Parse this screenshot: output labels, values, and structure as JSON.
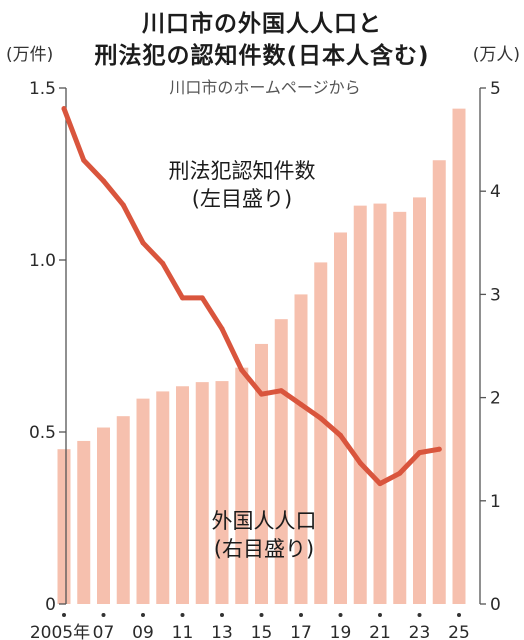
{
  "header": {
    "title_line1": "川口市の外国人人口と",
    "title_line2": "刑法犯の認知件数(日本人含む)",
    "unit_left": "(万件)",
    "unit_right": "(万人)",
    "source": "川口市のホームページから"
  },
  "chart_data": {
    "type": "bar+line",
    "title": "川口市の外国人人口と刑法犯の認知件数(日本人含む)",
    "source": "川口市のホームページから",
    "x": [
      2005,
      2006,
      2007,
      2008,
      2009,
      2010,
      2011,
      2012,
      2013,
      2014,
      2015,
      2016,
      2017,
      2018,
      2019,
      2020,
      2021,
      2022,
      2023,
      2024,
      2025
    ],
    "x_tick_labels": [
      {
        "x": 2005,
        "label": "2005年"
      },
      {
        "x": 2007,
        "label": "07"
      },
      {
        "x": 2009,
        "label": "09"
      },
      {
        "x": 2011,
        "label": "11"
      },
      {
        "x": 2013,
        "label": "13"
      },
      {
        "x": 2015,
        "label": "15"
      },
      {
        "x": 2017,
        "label": "17"
      },
      {
        "x": 2019,
        "label": "19"
      },
      {
        "x": 2021,
        "label": "21"
      },
      {
        "x": 2023,
        "label": "23"
      },
      {
        "x": 2025,
        "label": "25"
      }
    ],
    "left_axis": {
      "unit": "(万件)",
      "ylim": [
        0,
        1.5
      ],
      "ticks": [
        "0",
        "0.5",
        "1.0",
        "1.5"
      ],
      "tick_values": [
        0,
        0.5,
        1.0,
        1.5
      ]
    },
    "right_axis": {
      "unit": "(万人)",
      "ylim": [
        0,
        5
      ],
      "ticks": [
        "0",
        "1",
        "2",
        "3",
        "4",
        "5"
      ],
      "tick_values": [
        0,
        1,
        2,
        3,
        4,
        5
      ]
    },
    "series": [
      {
        "name": "刑法犯認知件数",
        "axis_note": "(左目盛り)",
        "type": "line",
        "axis": "left",
        "color": "#d9553d",
        "x": [
          2005,
          2006,
          2007,
          2008,
          2009,
          2010,
          2011,
          2012,
          2013,
          2014,
          2015,
          2016,
          2017,
          2018,
          2019,
          2020,
          2021,
          2022,
          2023,
          2024
        ],
        "values": [
          1.44,
          1.29,
          1.23,
          1.16,
          1.05,
          0.99,
          0.89,
          0.89,
          0.8,
          0.68,
          0.61,
          0.62,
          0.58,
          0.54,
          0.49,
          0.41,
          0.35,
          0.38,
          0.44,
          0.45
        ]
      },
      {
        "name": "外国人人口",
        "axis_note": "(右目盛り)",
        "type": "bar",
        "axis": "right",
        "color": "#f6c0ae",
        "x": [
          2005,
          2006,
          2007,
          2008,
          2009,
          2010,
          2011,
          2012,
          2013,
          2014,
          2015,
          2016,
          2017,
          2018,
          2019,
          2020,
          2021,
          2022,
          2023,
          2024,
          2025
        ],
        "values": [
          1.5,
          1.58,
          1.71,
          1.82,
          1.99,
          2.06,
          2.11,
          2.15,
          2.16,
          2.29,
          2.52,
          2.76,
          3.0,
          3.31,
          3.6,
          3.86,
          3.88,
          3.8,
          3.94,
          4.3,
          4.8
        ]
      }
    ],
    "grid": false
  }
}
